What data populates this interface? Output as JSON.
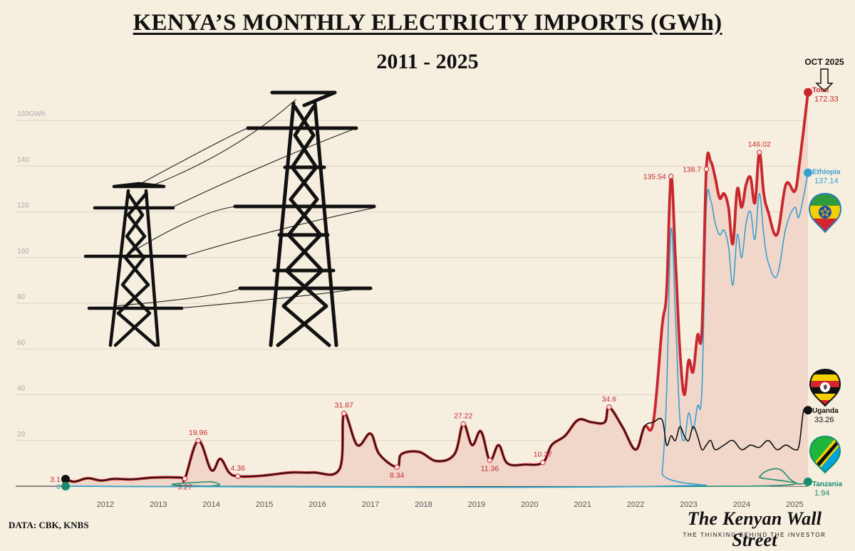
{
  "header": {
    "title": "KENYA’S MONTHLY ELECTRICTY IMPORTS (GWh)",
    "subtitle": "2011 - 2025"
  },
  "source": "DATA: CBK, KNBS",
  "brand": {
    "name": "The Kenyan Wall Street",
    "tagline": "THE THINKING BEHIND THE INVESTOR"
  },
  "latest_marker": "OCT 2025",
  "colors": {
    "total": "#c8282d",
    "total_fill": "#f0d2c6",
    "ethiopia": "#3a9fd0",
    "uganda": "#111111",
    "tanzania": "#1a8c6e",
    "grid": "#ddd6c8"
  },
  "icons": [
    "transmission-tower-icon",
    "down-arrow-icon",
    "ethiopia-flag-pin-icon",
    "uganda-flag-pin-icon",
    "tanzania-flag-pin-icon"
  ],
  "chart_data": {
    "type": "area",
    "xlabel": "",
    "ylabel": "",
    "x_ticks": [
      "2012",
      "2013",
      "2014",
      "2015",
      "2016",
      "2017",
      "2018",
      "2019",
      "2020",
      "2021",
      "2022",
      "2023",
      "2024",
      "2025"
    ],
    "y_ticks": [
      {
        "value": 20,
        "label": "20"
      },
      {
        "value": 40,
        "label": "40"
      },
      {
        "value": 60,
        "label": "60"
      },
      {
        "value": 80,
        "label": "80"
      },
      {
        "value": 100,
        "label": "100"
      },
      {
        "value": 120,
        "label": "120"
      },
      {
        "value": 140,
        "label": "140"
      },
      {
        "value": 160,
        "label": "160GWh"
      }
    ],
    "xlim": [
      "2011-10",
      "2025-10"
    ],
    "ylim": [
      0,
      175
    ],
    "grid": true,
    "series": [
      {
        "name": "Total",
        "key": "total",
        "end_value": "172.33",
        "points": [
          [
            "2011-10",
            3.1
          ],
          [
            "2011-12",
            2.0
          ],
          [
            "2012-03",
            3.5
          ],
          [
            "2012-06",
            2.5
          ],
          [
            "2012-09",
            3.2
          ],
          [
            "2013-01",
            3.0
          ],
          [
            "2013-06",
            3.8
          ],
          [
            "2013-12",
            3.8
          ],
          [
            "2014-01",
            3.27
          ],
          [
            "2014-04",
            19.96
          ],
          [
            "2014-07",
            7.0
          ],
          [
            "2014-09",
            12.0
          ],
          [
            "2014-11",
            6.0
          ],
          [
            "2015-01",
            4.36
          ],
          [
            "2015-06",
            4.5
          ],
          [
            "2016-01",
            6.0
          ],
          [
            "2016-06",
            6.0
          ],
          [
            "2016-12",
            7.5
          ],
          [
            "2017-01",
            31.87
          ],
          [
            "2017-04",
            18.0
          ],
          [
            "2017-07",
            23.0
          ],
          [
            "2017-09",
            14.0
          ],
          [
            "2018-01",
            8.34
          ],
          [
            "2018-02",
            14.0
          ],
          [
            "2018-06",
            15.0
          ],
          [
            "2018-10",
            11.0
          ],
          [
            "2019-02",
            14.0
          ],
          [
            "2019-04",
            27.22
          ],
          [
            "2019-06",
            18.0
          ],
          [
            "2019-08",
            24.0
          ],
          [
            "2019-10",
            11.36
          ],
          [
            "2019-12",
            18.0
          ],
          [
            "2020-02",
            10.0
          ],
          [
            "2020-06",
            9.5
          ],
          [
            "2020-10",
            10.37
          ],
          [
            "2020-12",
            18.0
          ],
          [
            "2021-03",
            22.0
          ],
          [
            "2021-06",
            29.0
          ],
          [
            "2021-09",
            28.0
          ],
          [
            "2021-12",
            28.0
          ],
          [
            "2022-01",
            34.6
          ],
          [
            "2022-04",
            26.0
          ],
          [
            "2022-07",
            16.0
          ],
          [
            "2022-09",
            26.0
          ],
          [
            "2022-11",
            28.0
          ],
          [
            "2023-01",
            70.0
          ],
          [
            "2023-02",
            85.0
          ],
          [
            "2023-03",
            135.54
          ],
          [
            "2023-04",
            100.0
          ],
          [
            "2023-05",
            60.0
          ],
          [
            "2023-06",
            40.0
          ],
          [
            "2023-07",
            55.0
          ],
          [
            "2023-08",
            50.0
          ],
          [
            "2023-09",
            66.0
          ],
          [
            "2023-10",
            68.0
          ],
          [
            "2023-11",
            138.7
          ],
          [
            "2023-12",
            142.0
          ],
          [
            "2024-01",
            135.0
          ],
          [
            "2024-02",
            126.0
          ],
          [
            "2024-03",
            128.0
          ],
          [
            "2024-04",
            122.0
          ],
          [
            "2024-05",
            106.0
          ],
          [
            "2024-06",
            130.0
          ],
          [
            "2024-07",
            122.0
          ],
          [
            "2024-08",
            132.0
          ],
          [
            "2024-09",
            135.0
          ],
          [
            "2024-10",
            124.0
          ],
          [
            "2024-11",
            146.02
          ],
          [
            "2024-12",
            128.0
          ],
          [
            "2025-01",
            120.0
          ],
          [
            "2025-03",
            110.0
          ],
          [
            "2025-05",
            132.0
          ],
          [
            "2025-07",
            129.0
          ],
          [
            "2025-08",
            140.0
          ],
          [
            "2025-10",
            172.33
          ]
        ],
        "labeled": [
          {
            "x": "2011-10",
            "value": "3.1",
            "pos": "left"
          },
          {
            "x": "2014-01",
            "value": "3.27",
            "pos": "below"
          },
          {
            "x": "2014-04",
            "value": "19.96",
            "pos": "above"
          },
          {
            "x": "2015-01",
            "value": "4.36",
            "pos": "above"
          },
          {
            "x": "2017-01",
            "value": "31.87",
            "pos": "above"
          },
          {
            "x": "2018-01",
            "value": "8.34",
            "pos": "below"
          },
          {
            "x": "2019-04",
            "value": "27.22",
            "pos": "above"
          },
          {
            "x": "2019-10",
            "value": "11.36",
            "pos": "below"
          },
          {
            "x": "2020-10",
            "value": "10.37",
            "pos": "above"
          },
          {
            "x": "2022-01",
            "value": "34.6",
            "pos": "above"
          },
          {
            "x": "2023-03",
            "value": "135.54",
            "pos": "left"
          },
          {
            "x": "2023-11",
            "value": "138.7",
            "pos": "left"
          },
          {
            "x": "2024-11",
            "value": "146.02",
            "pos": "above"
          }
        ]
      },
      {
        "name": "Ethiopia",
        "key": "ethiopia",
        "end_value": "137.14",
        "points": [
          [
            "2011-10",
            0
          ],
          [
            "2022-12",
            0
          ],
          [
            "2023-01",
            6.0
          ],
          [
            "2023-02",
            40.0
          ],
          [
            "2023-03",
            112.0
          ],
          [
            "2023-04",
            75.0
          ],
          [
            "2023-05",
            30.0
          ],
          [
            "2023-06",
            20.0
          ],
          [
            "2023-07",
            32.0
          ],
          [
            "2023-08",
            25.0
          ],
          [
            "2023-09",
            35.0
          ],
          [
            "2023-10",
            42.0
          ],
          [
            "2023-11",
            122.0
          ],
          [
            "2023-12",
            125.0
          ],
          [
            "2024-01",
            115.0
          ],
          [
            "2024-02",
            110.0
          ],
          [
            "2024-03",
            112.0
          ],
          [
            "2024-04",
            105.0
          ],
          [
            "2024-05",
            88.0
          ],
          [
            "2024-06",
            110.0
          ],
          [
            "2024-07",
            100.0
          ],
          [
            "2024-08",
            115.0
          ],
          [
            "2024-09",
            120.0
          ],
          [
            "2024-10",
            108.0
          ],
          [
            "2024-11",
            128.0
          ],
          [
            "2024-12",
            110.0
          ],
          [
            "2025-01",
            98.0
          ],
          [
            "2025-03",
            92.0
          ],
          [
            "2025-05",
            113.0
          ],
          [
            "2025-07",
            122.0
          ],
          [
            "2025-08",
            118.0
          ],
          [
            "2025-10",
            137.14
          ]
        ]
      },
      {
        "name": "Uganda",
        "key": "uganda",
        "end_value": "33.26",
        "points": [
          [
            "2011-10",
            3.1
          ],
          [
            "2011-12",
            2.0
          ],
          [
            "2012-03",
            3.5
          ],
          [
            "2012-06",
            2.5
          ],
          [
            "2012-09",
            3.2
          ],
          [
            "2013-01",
            3.0
          ],
          [
            "2013-06",
            3.8
          ],
          [
            "2013-12",
            3.8
          ],
          [
            "2014-01",
            3.27
          ],
          [
            "2014-04",
            19.5
          ],
          [
            "2014-07",
            7.0
          ],
          [
            "2014-09",
            12.0
          ],
          [
            "2014-11",
            6.0
          ],
          [
            "2015-01",
            4.36
          ],
          [
            "2015-06",
            4.5
          ],
          [
            "2016-01",
            6.0
          ],
          [
            "2016-06",
            6.0
          ],
          [
            "2016-12",
            7.5
          ],
          [
            "2017-01",
            31.5
          ],
          [
            "2017-04",
            18.0
          ],
          [
            "2017-07",
            23.0
          ],
          [
            "2017-09",
            14.0
          ],
          [
            "2018-01",
            8.34
          ],
          [
            "2018-02",
            14.0
          ],
          [
            "2018-06",
            15.0
          ],
          [
            "2018-10",
            11.0
          ],
          [
            "2019-02",
            14.0
          ],
          [
            "2019-04",
            27.0
          ],
          [
            "2019-06",
            18.0
          ],
          [
            "2019-08",
            24.0
          ],
          [
            "2019-10",
            11.36
          ],
          [
            "2019-12",
            18.0
          ],
          [
            "2020-02",
            10.0
          ],
          [
            "2020-06",
            9.5
          ],
          [
            "2020-10",
            10.37
          ],
          [
            "2020-12",
            18.0
          ],
          [
            "2021-03",
            22.0
          ],
          [
            "2021-06",
            29.0
          ],
          [
            "2021-09",
            28.0
          ],
          [
            "2021-12",
            28.0
          ],
          [
            "2022-01",
            34.3
          ],
          [
            "2022-04",
            26.0
          ],
          [
            "2022-07",
            16.0
          ],
          [
            "2022-09",
            26.0
          ],
          [
            "2022-11",
            28.0
          ],
          [
            "2023-01",
            29.0
          ],
          [
            "2023-02",
            18.0
          ],
          [
            "2023-03",
            22.0
          ],
          [
            "2023-04",
            20.0
          ],
          [
            "2023-05",
            26.0
          ],
          [
            "2023-06",
            22.0
          ],
          [
            "2023-07",
            20.0
          ],
          [
            "2023-08",
            26.0
          ],
          [
            "2023-09",
            22.0
          ],
          [
            "2023-10",
            16.0
          ],
          [
            "2023-11",
            18.0
          ],
          [
            "2023-12",
            20.0
          ],
          [
            "2024-01",
            16.0
          ],
          [
            "2024-03",
            18.0
          ],
          [
            "2024-05",
            20.0
          ],
          [
            "2024-07",
            16.0
          ],
          [
            "2024-09",
            18.0
          ],
          [
            "2024-11",
            17.0
          ],
          [
            "2025-01",
            20.0
          ],
          [
            "2025-03",
            16.0
          ],
          [
            "2025-05",
            18.0
          ],
          [
            "2025-07",
            16.0
          ],
          [
            "2025-08",
            18.0
          ],
          [
            "2025-09",
            33.0
          ],
          [
            "2025-10",
            33.26
          ]
        ]
      },
      {
        "name": "Tanzania",
        "key": "tanzania",
        "end_value": "1.94",
        "points": [
          [
            "2011-10",
            0
          ],
          [
            "2014-06",
            0
          ],
          [
            "2014-07",
            2.0
          ],
          [
            "2014-08",
            0
          ],
          [
            "2024-09",
            0
          ],
          [
            "2024-11",
            4.0
          ],
          [
            "2024-12",
            6.0
          ],
          [
            "2025-02",
            7.5
          ],
          [
            "2025-04",
            7.0
          ],
          [
            "2025-06",
            3.0
          ],
          [
            "2025-08",
            1.0
          ],
          [
            "2025-10",
            1.94
          ]
        ],
        "labeled": [
          {
            "x": "2011-10",
            "value": "0",
            "pos": "left"
          }
        ]
      }
    ]
  }
}
